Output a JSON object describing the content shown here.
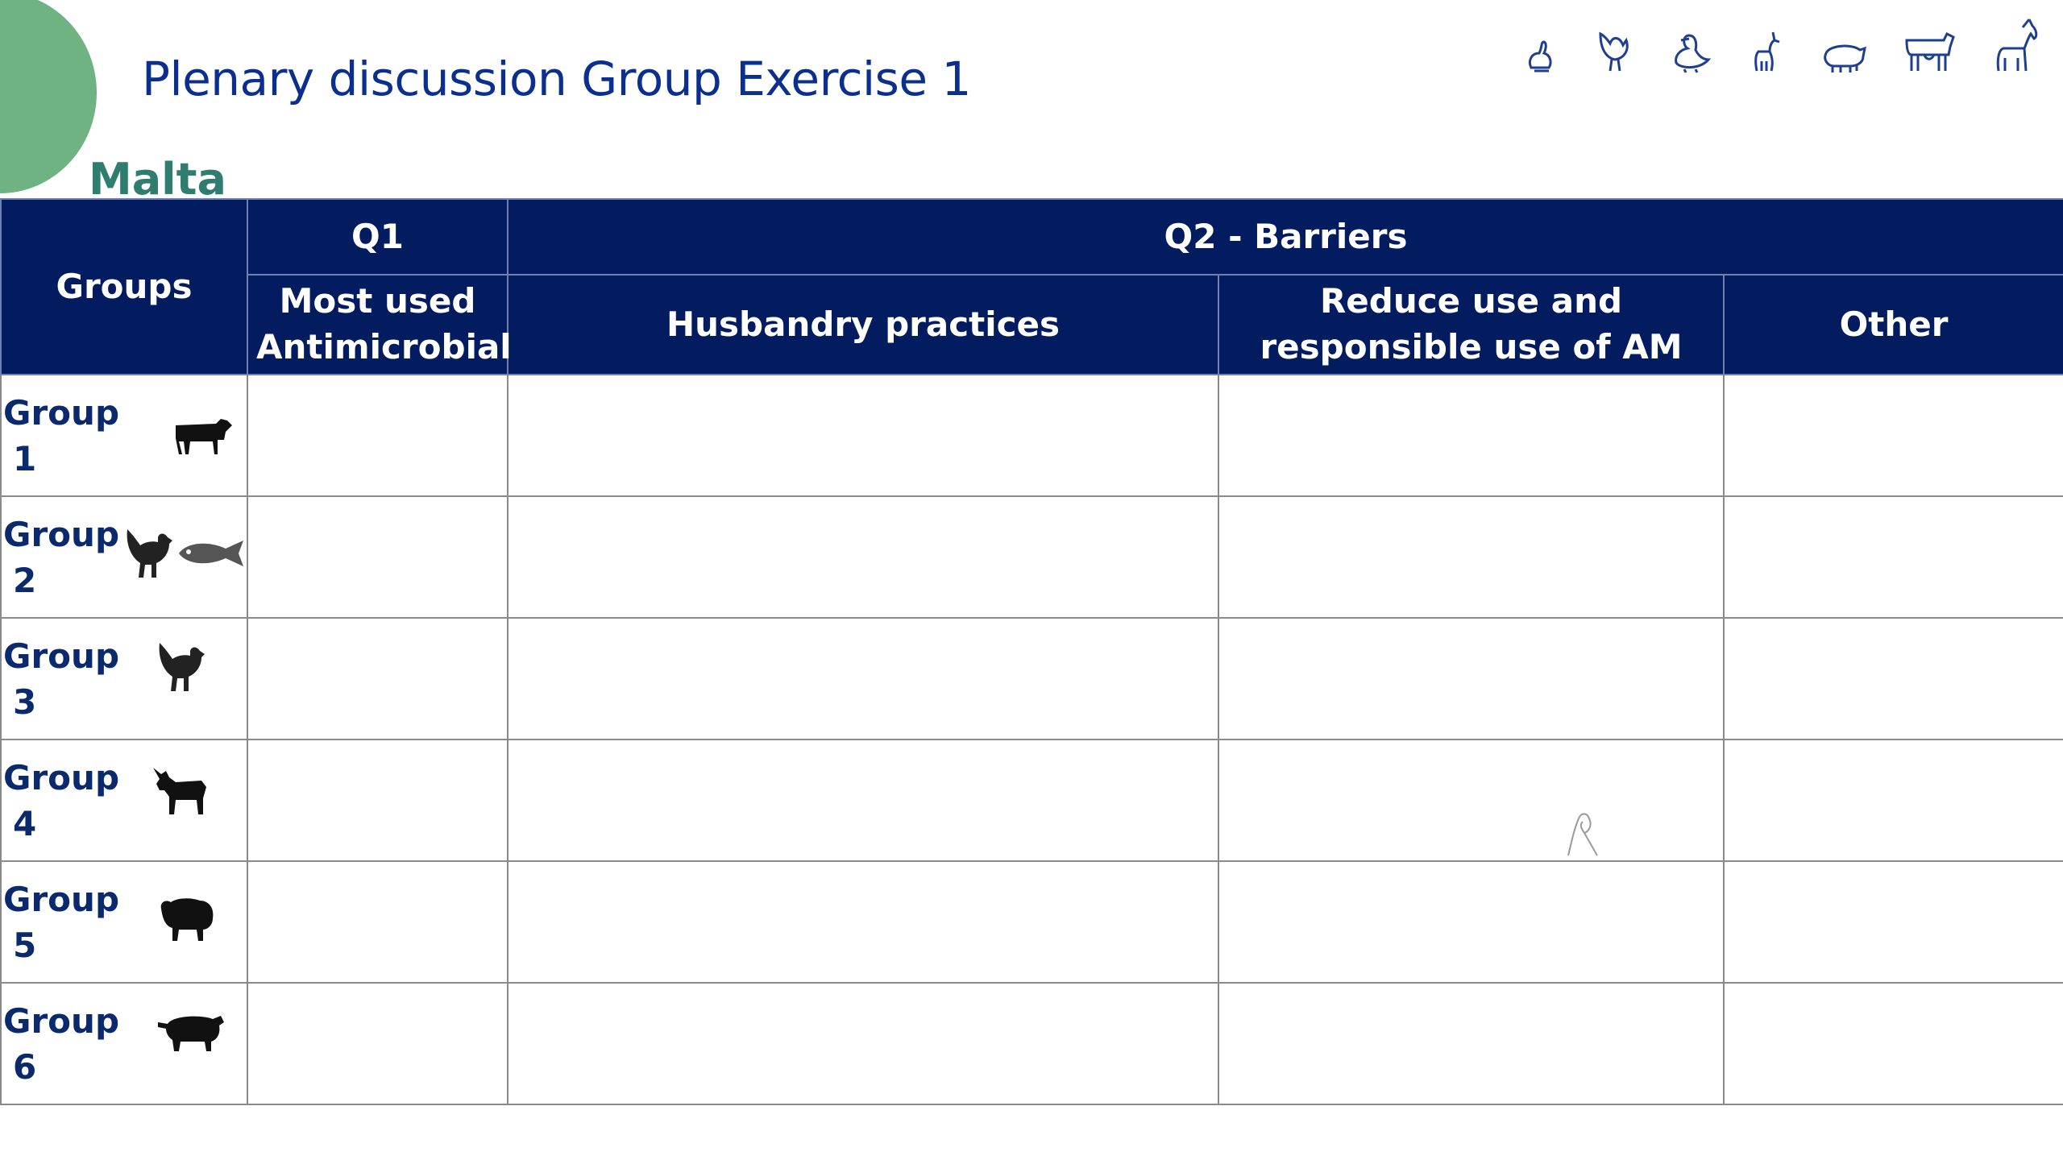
{
  "slide": {
    "title": "Plenary discussion Group Exercise 1",
    "country": "Malta",
    "accent_color": "#6fb383",
    "title_color": "#0a2f8f",
    "header_bg": "#031c5f",
    "species_icons": [
      "rabbit-icon",
      "chicken-icon",
      "duck-icon",
      "goat-icon",
      "pig-icon",
      "cow-icon",
      "horse-icon"
    ]
  },
  "table": {
    "groups_header": "Groups",
    "q1_header": "Q1",
    "q2_header": "Q2 - Barriers",
    "subheaders": {
      "most_used": "Most used Antimicrobial",
      "husbandry": "Husbandry practices",
      "reduce_use": "Reduce use and responsible use of AM",
      "other": "Other"
    },
    "rows": [
      {
        "label": "Group",
        "number": "1",
        "icons": [
          "cow-icon"
        ]
      },
      {
        "label": "Group",
        "number": "2",
        "icons": [
          "chicken-icon",
          "fish-icon"
        ]
      },
      {
        "label": "Group",
        "number": "3",
        "icons": [
          "chicken-icon"
        ]
      },
      {
        "label": "Group",
        "number": "4",
        "icons": [
          "goat-icon"
        ]
      },
      {
        "label": "Group",
        "number": "5",
        "icons": [
          "sheep-icon"
        ]
      },
      {
        "label": "Group",
        "number": "6",
        "icons": [
          "pig-icon"
        ]
      }
    ]
  }
}
